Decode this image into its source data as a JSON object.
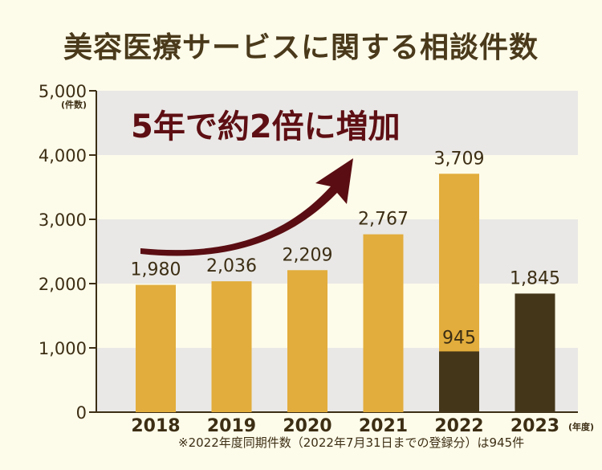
{
  "title": "美容医療サービスに関する相談件数",
  "headline": "5年で約2倍に増加",
  "note": "※2022年度同期件数（2022年7月31日までの登録分）は945件",
  "colors": {
    "bar_gold": "#e2ad3c",
    "bar_dark": "#443619",
    "band": "#e9e8e6",
    "arrow": "#5a0d12"
  },
  "chart_data": {
    "type": "bar",
    "title": "美容医療サービスに関する相談件数",
    "categories": [
      "2018",
      "2019",
      "2020",
      "2021",
      "2022",
      "2023"
    ],
    "series": [
      {
        "values": [
          1980,
          2036,
          2209,
          2767,
          3709,
          null
        ],
        "value_labels": [
          "1,980",
          "2,036",
          "2,209",
          "2,767",
          "3,709",
          ""
        ]
      },
      {
        "values": [
          null,
          null,
          null,
          null,
          945,
          1845
        ],
        "value_labels": [
          "",
          "",
          "",
          "",
          "945",
          "1,845"
        ]
      }
    ],
    "ylim": [
      0,
      5000
    ],
    "yticks": [
      0,
      1000,
      2000,
      3000,
      4000,
      5000
    ],
    "ytick_labels": [
      "0",
      "1,000",
      "2,000",
      "3,000",
      "4,000",
      "5,000"
    ],
    "ylabel": "(件数)",
    "xlabel": "(年度)",
    "grid": "alternating bands"
  }
}
